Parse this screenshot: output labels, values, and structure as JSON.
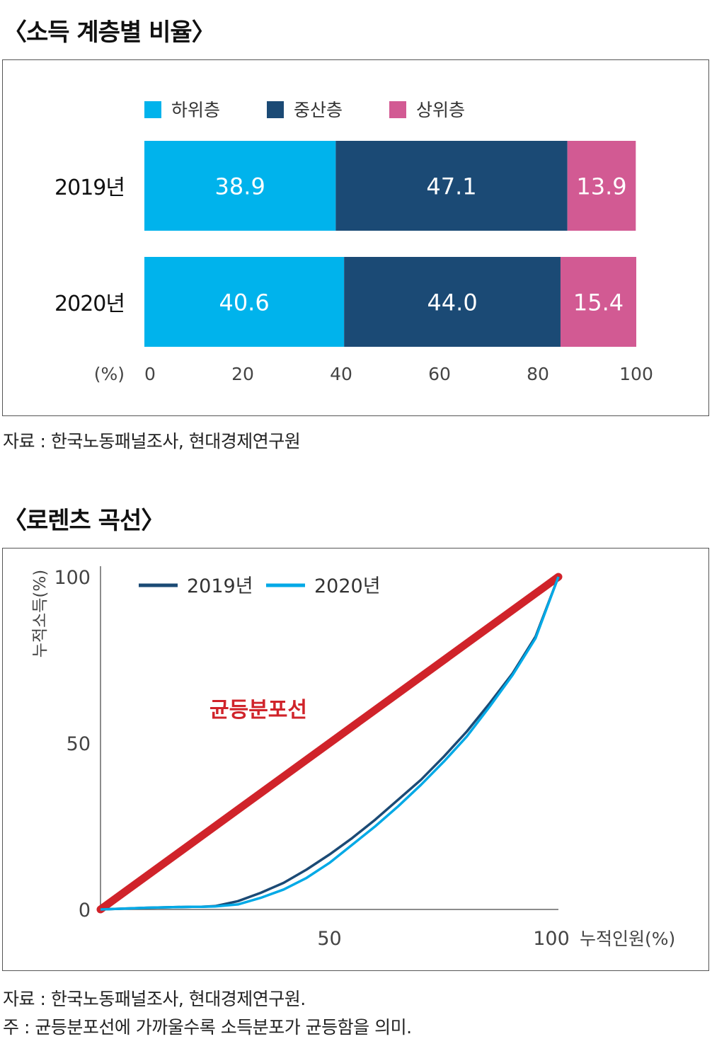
{
  "chart_data": [
    {
      "type": "bar",
      "orientation": "horizontal-stacked",
      "title": "〈소득 계층별 비율〉",
      "categories": [
        "2019년",
        "2020년"
      ],
      "series": [
        {
          "name": "하위층",
          "values": [
            38.9,
            40.6
          ],
          "color": "#00b3ec"
        },
        {
          "name": "중산층",
          "values": [
            47.1,
            44.0
          ],
          "color": "#1b4a75"
        },
        {
          "name": "상위층",
          "values": [
            13.9,
            15.4
          ],
          "color": "#d25a93"
        }
      ],
      "x_unit_label": "(%)",
      "x_ticks": [
        0,
        20,
        40,
        60,
        80,
        100
      ],
      "xlim": [
        0,
        100
      ],
      "source": "자료 : 한국노동패널조사, 현대경제연구원"
    },
    {
      "type": "line",
      "title": "〈로렌츠 곡선〉",
      "xlabel": "누적인원(%)",
      "ylabel": "누적소득(%)",
      "x_ticks": [
        50,
        100
      ],
      "y_ticks": [
        0,
        50,
        100
      ],
      "xlim": [
        0,
        100
      ],
      "ylim": [
        0,
        100
      ],
      "series": [
        {
          "name": "2019년",
          "color": "#1b4a75",
          "x": [
            0,
            10,
            20,
            22,
            25,
            30,
            35,
            40,
            45,
            50,
            55,
            60,
            65,
            70,
            75,
            80,
            85,
            90,
            95,
            100
          ],
          "y": [
            0,
            0.5,
            0.8,
            0.8,
            1,
            2.5,
            5,
            8,
            12,
            16.5,
            21.5,
            27,
            33,
            39,
            46,
            53.5,
            62,
            71,
            82,
            100
          ]
        },
        {
          "name": "2020년",
          "color": "#00a9e6",
          "x": [
            0,
            10,
            20,
            22,
            25,
            30,
            35,
            40,
            45,
            50,
            55,
            60,
            65,
            70,
            75,
            80,
            85,
            90,
            95,
            100
          ],
          "y": [
            0,
            0.5,
            0.8,
            0.8,
            0.9,
            1.5,
            3.5,
            6,
            9.5,
            14,
            19.5,
            25,
            31,
            37.5,
            44.5,
            52,
            61,
            70.5,
            81.5,
            100
          ]
        }
      ],
      "equality_line": {
        "label": "균등분포선",
        "color": "#d0232a",
        "x": [
          0,
          100
        ],
        "y": [
          0,
          100
        ]
      },
      "source": "자료 : 한국노동패널조사, 현대경제연구원.",
      "note": "주 : 균등분포선에 가까울수록 소득분포가 균등함을 의미."
    }
  ]
}
